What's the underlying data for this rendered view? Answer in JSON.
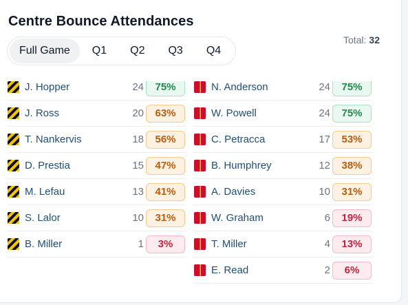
{
  "title": "Centre Bounce Attendances",
  "total": {
    "label": "Total:",
    "value": "32"
  },
  "tabs": [
    {
      "label": "Full Game",
      "active": true
    },
    {
      "label": "Q1",
      "active": false
    },
    {
      "label": "Q2",
      "active": false
    },
    {
      "label": "Q3",
      "active": false
    },
    {
      "label": "Q4",
      "active": false
    }
  ],
  "colors": {
    "green": "#1f8a4c",
    "orange": "#b95d10",
    "pink": "#c5223f",
    "name": "#1f4e79"
  },
  "teams": {
    "left_icon": "richmond-guernsey-icon",
    "right_icon": "sydney-guernsey-icon"
  },
  "rows": [
    {
      "left": {
        "name": "J. Hopper",
        "count": "24",
        "pct": "75%",
        "tone": "green"
      },
      "right": {
        "name": "N. Anderson",
        "count": "24",
        "pct": "75%",
        "tone": "green"
      }
    },
    {
      "left": {
        "name": "J. Ross",
        "count": "20",
        "pct": "63%",
        "tone": "orange"
      },
      "right": {
        "name": "W. Powell",
        "count": "24",
        "pct": "75%",
        "tone": "green"
      }
    },
    {
      "left": {
        "name": "T. Nankervis",
        "count": "18",
        "pct": "56%",
        "tone": "orange"
      },
      "right": {
        "name": "C. Petracca",
        "count": "17",
        "pct": "53%",
        "tone": "orange"
      }
    },
    {
      "left": {
        "name": "D. Prestia",
        "count": "15",
        "pct": "47%",
        "tone": "orange"
      },
      "right": {
        "name": "B. Humphrey",
        "count": "12",
        "pct": "38%",
        "tone": "orange"
      }
    },
    {
      "left": {
        "name": "M. Lefau",
        "count": "13",
        "pct": "41%",
        "tone": "orange"
      },
      "right": {
        "name": "A. Davies",
        "count": "10",
        "pct": "31%",
        "tone": "orange"
      }
    },
    {
      "left": {
        "name": "S. Lalor",
        "count": "10",
        "pct": "31%",
        "tone": "orange"
      },
      "right": {
        "name": "W. Graham",
        "count": "6",
        "pct": "19%",
        "tone": "pink"
      }
    },
    {
      "left": {
        "name": "B. Miller",
        "count": "1",
        "pct": "3%",
        "tone": "pink"
      },
      "right": {
        "name": "T. Miller",
        "count": "4",
        "pct": "13%",
        "tone": "pink"
      }
    },
    {
      "left": null,
      "right": {
        "name": "E. Read",
        "count": "2",
        "pct": "6%",
        "tone": "pink"
      }
    }
  ]
}
